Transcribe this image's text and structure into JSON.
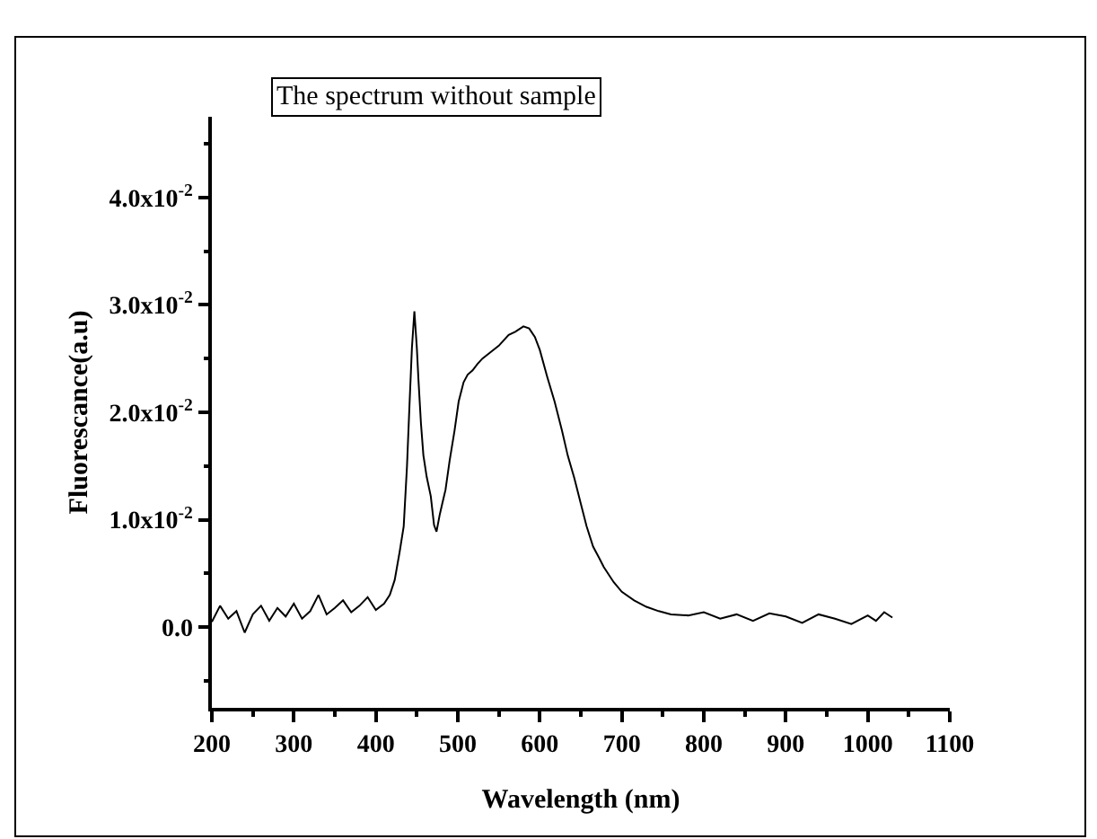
{
  "chart_data": {
    "type": "line",
    "xlabel": "Wavelength (nm)",
    "ylabel": "Fluorescance(a.u)",
    "annotations": [
      "The spectrum without sample"
    ],
    "xlim": [
      200,
      1100
    ],
    "xticks": [
      200,
      300,
      400,
      500,
      600,
      700,
      800,
      900,
      1000,
      1100
    ],
    "ylim": [
      -0.0075,
      0.0475
    ],
    "yticks": [
      {
        "value": 0,
        "label": "0.0"
      },
      {
        "value": 0.01,
        "label": "1.0x10$^{-2}$"
      },
      {
        "value": 0.02,
        "label": "2.0x10$^{-2}$"
      },
      {
        "value": 0.03,
        "label": "3.0x10$^{-2}$"
      },
      {
        "value": 0.04,
        "label": "4.0x10$^{-2}$"
      }
    ],
    "grid": false,
    "marker": "none",
    "line_style": "solid",
    "series": [
      {
        "color": "#000000",
        "x": [
          200,
          210,
          220,
          230,
          240,
          250,
          260,
          270,
          280,
          290,
          300,
          310,
          320,
          330,
          340,
          350,
          360,
          370,
          380,
          390,
          400,
          410,
          417,
          423,
          429,
          434,
          438,
          441,
          444,
          447,
          450,
          452,
          455,
          458,
          462,
          467,
          471,
          474,
          478,
          481,
          485,
          490,
          496,
          501,
          507,
          512,
          518,
          524,
          530,
          540,
          550,
          562,
          570,
          580,
          587,
          594,
          600,
          609,
          618,
          627,
          634,
          642,
          650,
          657,
          665,
          672,
          678,
          690,
          700,
          715,
          730,
          745,
          760,
          781,
          800,
          820,
          840,
          860,
          880,
          900,
          920,
          940,
          960,
          980,
          1000,
          1010,
          1020,
          1030
        ],
        "values": [
          0.0005,
          0.002,
          0.0008,
          0.0015,
          -0.0005,
          0.0012,
          0.002,
          0.0006,
          0.0018,
          0.001,
          0.0022,
          0.0008,
          0.0015,
          0.003,
          0.0012,
          0.0018,
          0.0025,
          0.0014,
          0.002,
          0.0028,
          0.0016,
          0.0022,
          0.003,
          0.0044,
          0.007,
          0.0094,
          0.015,
          0.0206,
          0.026,
          0.0294,
          0.026,
          0.023,
          0.019,
          0.016,
          0.014,
          0.0122,
          0.0095,
          0.0089,
          0.0105,
          0.0115,
          0.0128,
          0.0155,
          0.0183,
          0.021,
          0.0228,
          0.0235,
          0.0239,
          0.0245,
          0.025,
          0.0256,
          0.0262,
          0.0272,
          0.0275,
          0.028,
          0.0278,
          0.027,
          0.0258,
          0.0233,
          0.021,
          0.0183,
          0.016,
          0.0139,
          0.0115,
          0.0094,
          0.0075,
          0.0065,
          0.0056,
          0.0042,
          0.0033,
          0.0025,
          0.0019,
          0.0015,
          0.0012,
          0.0011,
          0.0014,
          0.0008,
          0.0012,
          0.0006,
          0.0013,
          0.001,
          0.0004,
          0.0012,
          0.0008,
          0.0003,
          0.0011,
          0.0006,
          0.0014,
          0.0009
        ]
      }
    ]
  }
}
